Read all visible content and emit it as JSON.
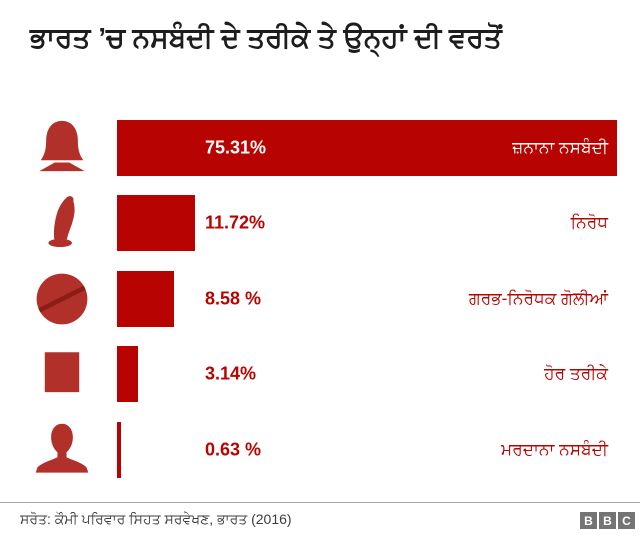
{
  "title": "ਭਾਰਤ ’ਚ ਨਸਬੰਦੀ ਦੇ ਤਰੀਕੇ ਤੇ ਉਨ੍ਹਾਂ ਦੀ ਵਰਤੋਂ",
  "source": "ਸਰੋਤ: ਕੌਮੀ ਪਰਿਵਾਰ ਸਿਹਤ ਸਰਵੇਖਣ, ਭਾਰਤ (2016)",
  "logo": {
    "letters": [
      "B",
      "B",
      "C"
    ]
  },
  "colors": {
    "bar_red": "#b80400",
    "icon_red": "#b1302a",
    "pill_stripe": "#8c1d15",
    "text_red": "#b80400",
    "title_color": "#1d1d1d",
    "source_color": "#3c3c3c",
    "rule_gray": "#a6a6a6",
    "bbc_gray": "#747474"
  },
  "chart_data": {
    "type": "bar",
    "orientation": "horizontal",
    "title": "ਭਾਰਤ ’ਚ ਨਸਬੰਦੀ ਦੇ ਤਰੀਕੇ ਤੇ ਉਨ੍ਹਾਂ ਦੀ ਵਰਤੋਂ",
    "categories": [
      "ਜ਼ਨਾਨਾ ਨਸਬੰਦੀ",
      "ਨਿਰੋਧ",
      "ਗਰਭ-ਨਿਰੋਧਕ ਗੋਲੀਆਂ",
      "ਹੋਰ ਤਰੀਕੇ",
      "ਮਰਦਾਨਾ ਨਸਬੰਦੀ"
    ],
    "values": [
      75.31,
      11.72,
      8.58,
      3.14,
      0.63
    ],
    "value_labels": [
      "75.31%",
      "11.72%",
      "8.58 %",
      "3.14%",
      "0.63 %"
    ],
    "icons": [
      "woman-icon",
      "condom-icon",
      "contraceptive-pill-icon",
      "square-icon",
      "man-icon"
    ],
    "xlim": [
      0,
      80
    ],
    "grid": false,
    "legend": false,
    "unit": "percent"
  }
}
